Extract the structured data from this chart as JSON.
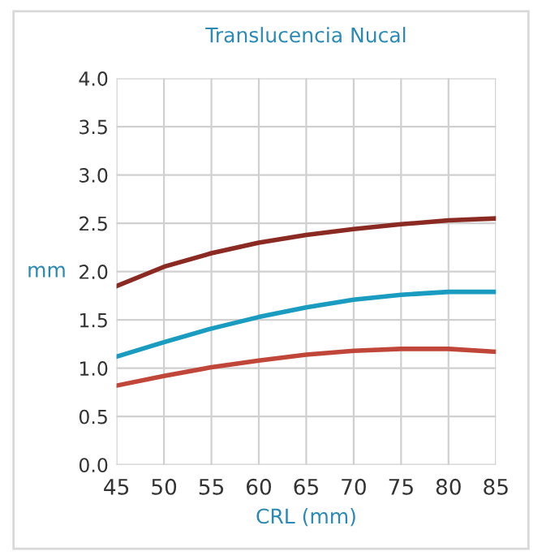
{
  "chart_data": {
    "type": "line",
    "title": "Translucencia Nucal",
    "xlabel": "CRL (mm)",
    "ylabel": "mm",
    "x": [
      45,
      50,
      55,
      60,
      65,
      70,
      75,
      80,
      85
    ],
    "series": [
      {
        "color": "#8b2a22",
        "values": [
          1.85,
          2.05,
          2.19,
          2.3,
          2.38,
          2.44,
          2.49,
          2.53,
          2.55
        ]
      },
      {
        "color": "#1a9bc0",
        "values": [
          1.12,
          1.27,
          1.41,
          1.53,
          1.63,
          1.71,
          1.76,
          1.79,
          1.79
        ]
      },
      {
        "color": "#c0463a",
        "values": [
          0.82,
          0.92,
          1.01,
          1.08,
          1.14,
          1.18,
          1.2,
          1.2,
          1.17
        ]
      }
    ],
    "xlim": [
      45,
      85
    ],
    "xticks": [
      45,
      50,
      55,
      60,
      65,
      70,
      75,
      80,
      85
    ],
    "ylim": [
      0,
      4
    ],
    "yticks": [
      {
        "value": 0,
        "label": "0.0"
      },
      {
        "value": 0.5,
        "label": "0.5"
      },
      {
        "value": 1,
        "label": "1.0"
      },
      {
        "value": 1.5,
        "label": "1.5"
      },
      {
        "value": 2,
        "label": "2.0"
      },
      {
        "value": 2.5,
        "label": "2.5"
      },
      {
        "value": 3,
        "label": "3.0"
      },
      {
        "value": 3.5,
        "label": "3.5"
      },
      {
        "value": 4,
        "label": "4.0"
      }
    ],
    "grid": true,
    "legend": false,
    "marker": "none",
    "line_style": "solid"
  }
}
